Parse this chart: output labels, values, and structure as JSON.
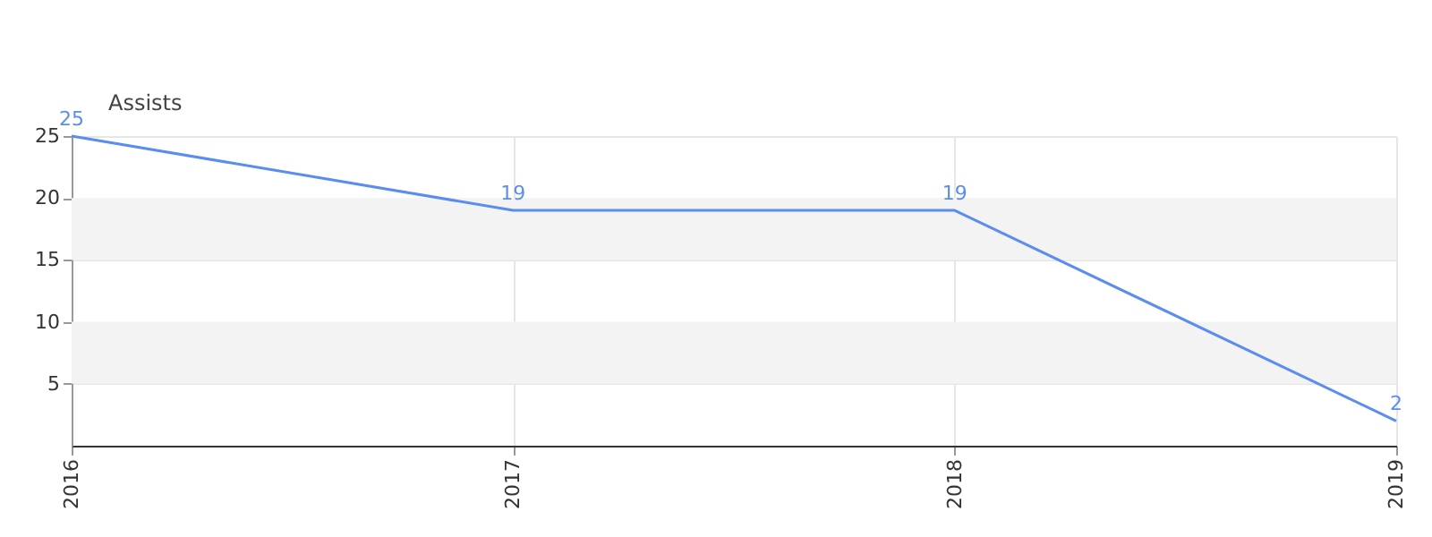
{
  "chart_data": {
    "type": "line",
    "ylabel": "Assists",
    "categories": [
      "2016",
      "2017",
      "2018",
      "2019"
    ],
    "series": [
      {
        "color": "#5b8def",
        "values": [
          25,
          19,
          19,
          2
        ]
      }
    ],
    "ylim": [
      0,
      25
    ],
    "yticks": [
      5,
      10,
      15,
      20,
      25
    ],
    "bands": [
      {
        "axis": "y",
        "from": 5,
        "to": 10,
        "color": "#f3f3f3"
      },
      {
        "axis": "y",
        "from": 15,
        "to": 20,
        "color": "#f3f3f3"
      }
    ],
    "grid": true,
    "data_labels": true,
    "marker": "none",
    "line_style": "solid"
  }
}
